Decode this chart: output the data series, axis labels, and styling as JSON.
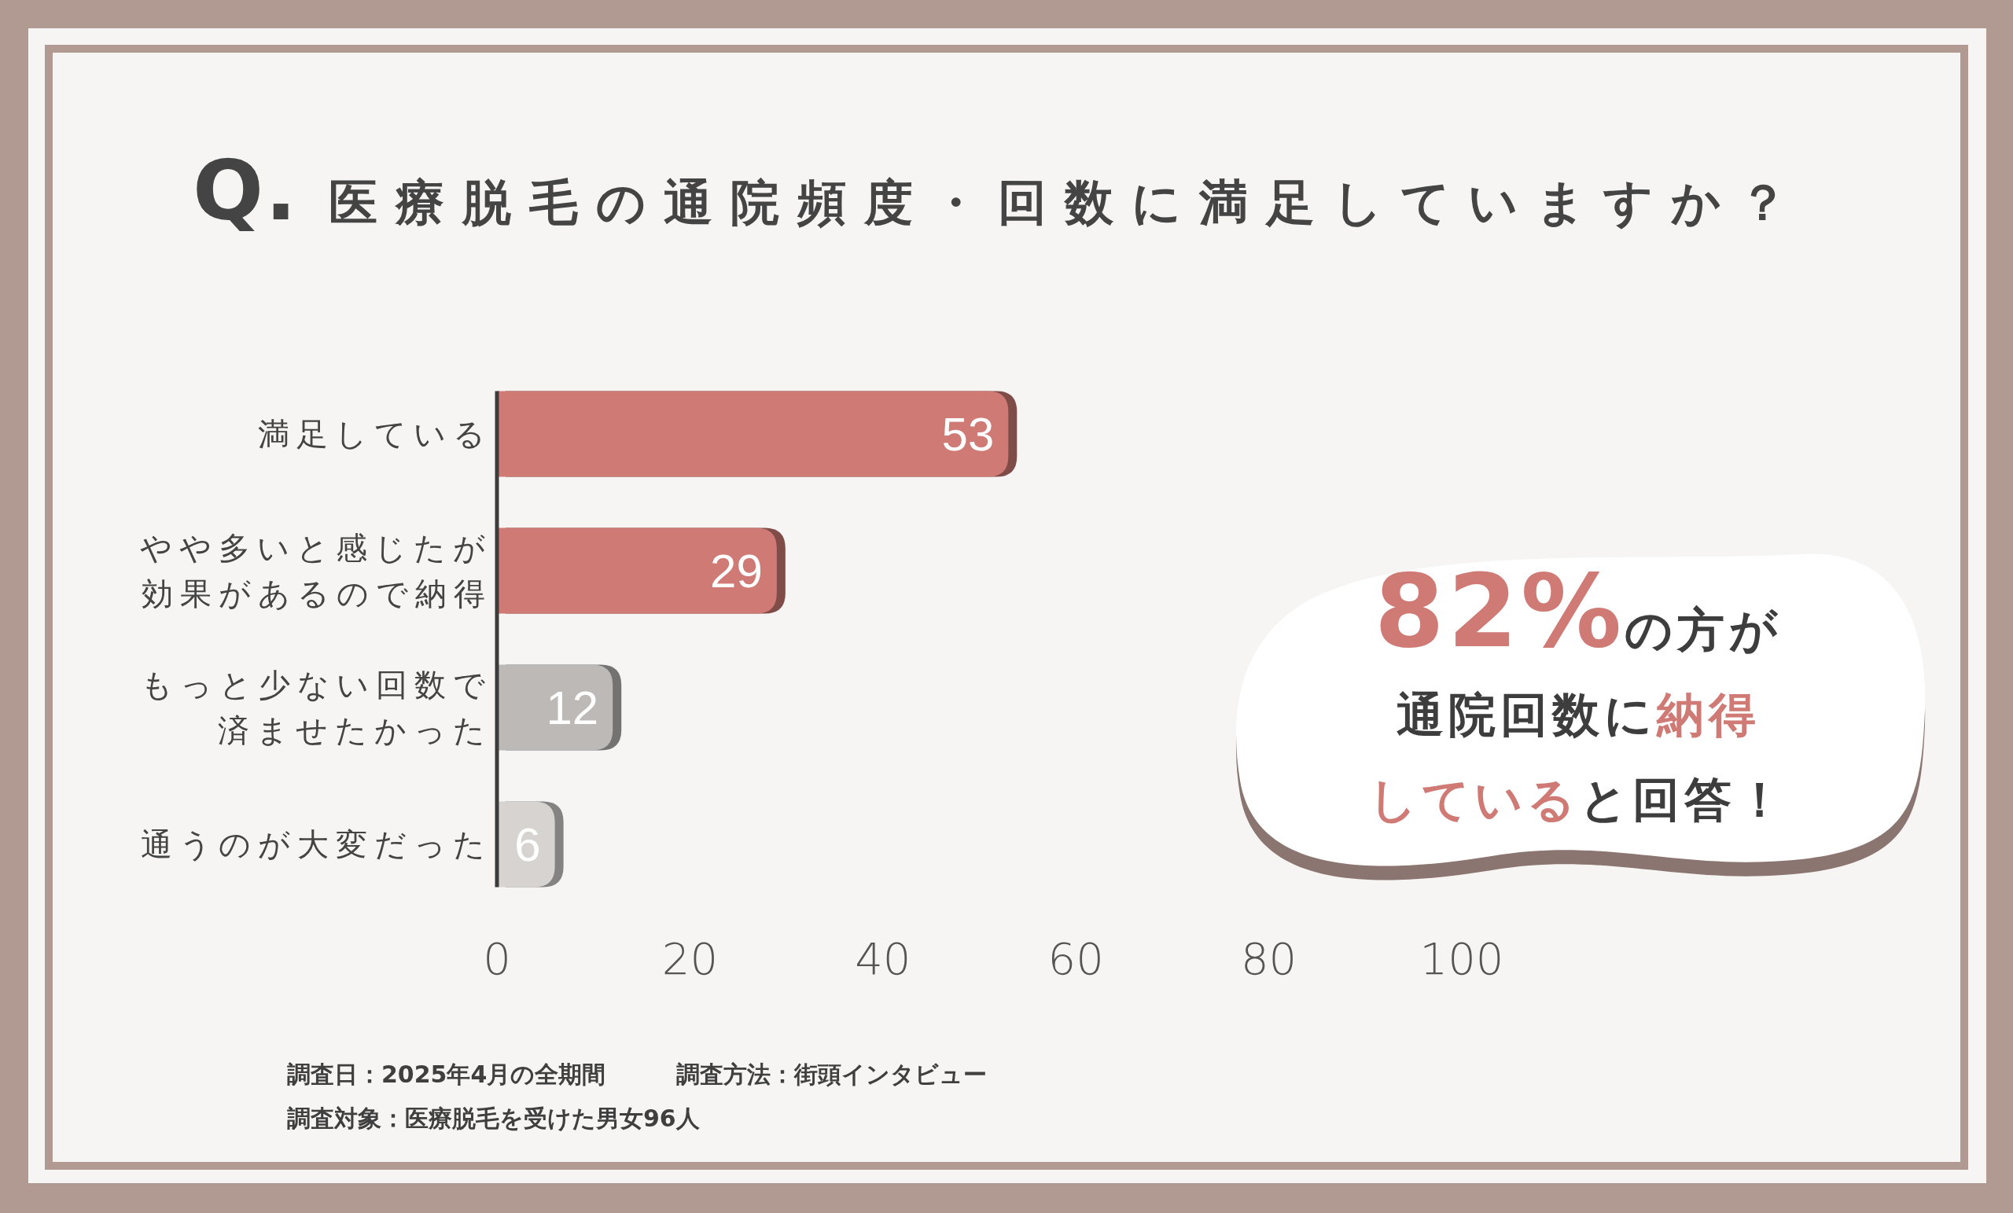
{
  "chart_data": {
    "type": "bar",
    "orientation": "horizontal",
    "title": "Q. 医療脱毛の通院頻度・回数に満足していますか？",
    "categories": [
      "満足している",
      "やや多いと感じたが効果があるので納得",
      "もっと少ない回数で済ませたかった",
      "通うのが大変だった"
    ],
    "values": [
      53,
      29,
      12,
      6
    ],
    "colors": [
      "#cf7a74",
      "#cf7a74",
      "#bdb9b7",
      "#d6d3d1"
    ],
    "data_labels": true,
    "xlim": [
      0,
      100
    ],
    "xticks": [
      0,
      20,
      40,
      60,
      80,
      100
    ],
    "annotations": [
      "**82%**の方が通院回数に**納得している**と回答！",
      "調査日：2025年4月の全期間",
      "調査方法：街頭インタビュー",
      "調査対象：医療脱毛を受けた男女96人"
    ]
  }
}
